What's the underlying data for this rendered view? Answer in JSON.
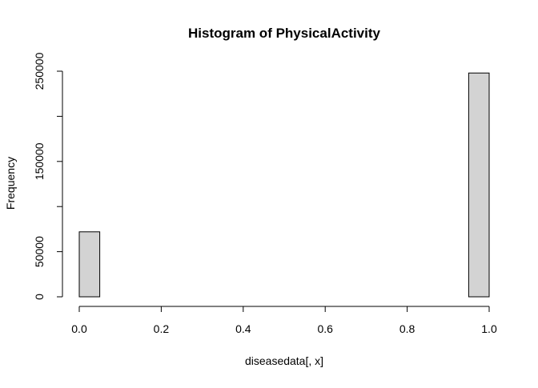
{
  "chart_data": {
    "type": "bar",
    "title": "Histogram of PhysicalActivity",
    "xlabel": "diseasedata[, x]",
    "ylabel": "Frequency",
    "bins": [
      {
        "start": 0.0,
        "end": 0.05,
        "value": 72000
      },
      {
        "start": 0.05,
        "end": 0.1,
        "value": 0
      },
      {
        "start": 0.1,
        "end": 0.15,
        "value": 0
      },
      {
        "start": 0.15,
        "end": 0.2,
        "value": 0
      },
      {
        "start": 0.2,
        "end": 0.25,
        "value": 0
      },
      {
        "start": 0.25,
        "end": 0.3,
        "value": 0
      },
      {
        "start": 0.3,
        "end": 0.35,
        "value": 0
      },
      {
        "start": 0.35,
        "end": 0.4,
        "value": 0
      },
      {
        "start": 0.4,
        "end": 0.45,
        "value": 0
      },
      {
        "start": 0.45,
        "end": 0.5,
        "value": 0
      },
      {
        "start": 0.5,
        "end": 0.55,
        "value": 0
      },
      {
        "start": 0.55,
        "end": 0.6,
        "value": 0
      },
      {
        "start": 0.6,
        "end": 0.65,
        "value": 0
      },
      {
        "start": 0.65,
        "end": 0.7,
        "value": 0
      },
      {
        "start": 0.7,
        "end": 0.75,
        "value": 0
      },
      {
        "start": 0.75,
        "end": 0.8,
        "value": 0
      },
      {
        "start": 0.8,
        "end": 0.85,
        "value": 0
      },
      {
        "start": 0.85,
        "end": 0.9,
        "value": 0
      },
      {
        "start": 0.9,
        "end": 0.95,
        "value": 0
      },
      {
        "start": 0.95,
        "end": 1.0,
        "value": 248000
      }
    ],
    "xlim": [
      0,
      1
    ],
    "ylim": [
      0,
      250000
    ],
    "x_ticks": [
      "0.0",
      "0.2",
      "0.4",
      "0.6",
      "0.8",
      "1.0"
    ],
    "x_tick_values": [
      0,
      0.2,
      0.4,
      0.6,
      0.8,
      1.0
    ],
    "y_ticks": [
      "0",
      "50000",
      "150000",
      "250000"
    ],
    "y_tick_values": [
      0,
      50000,
      150000,
      250000
    ],
    "y_axis_tick_values": [
      0,
      50000,
      100000,
      150000,
      200000,
      250000
    ],
    "grid": false,
    "legend": "none",
    "bar_fill": "#d3d3d3",
    "bar_stroke": "#000000"
  }
}
